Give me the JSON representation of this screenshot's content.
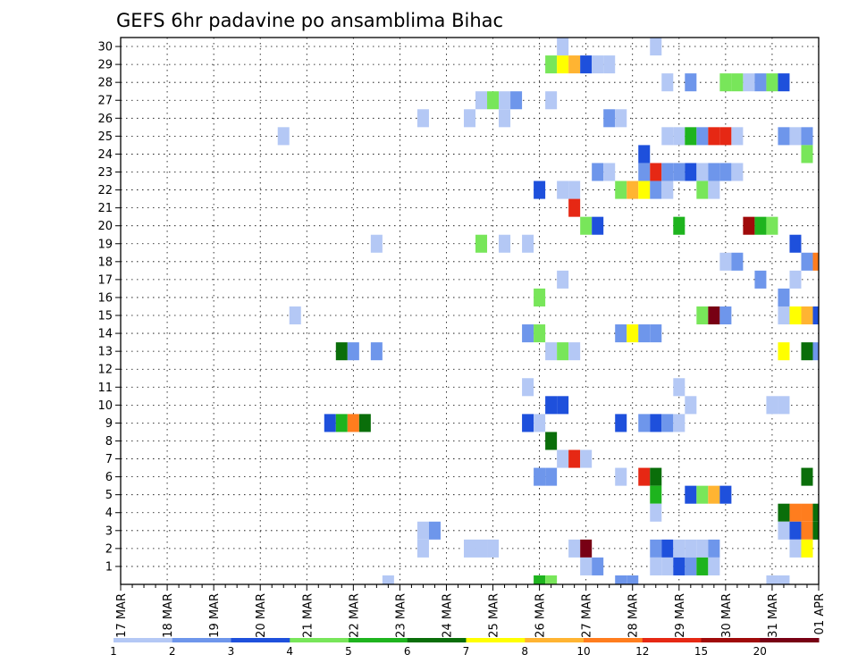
{
  "chart_data": {
    "type": "heatmap",
    "title": "GEFS 6hr padavine po ansamblima Bihac",
    "y_ticks": [
      1,
      2,
      3,
      4,
      5,
      6,
      7,
      8,
      9,
      10,
      11,
      12,
      13,
      14,
      15,
      16,
      17,
      18,
      19,
      20,
      21,
      22,
      23,
      24,
      25,
      26,
      27,
      28,
      29,
      30
    ],
    "ylim": [
      0,
      30
    ],
    "x_tick_labels": [
      "17 MAR",
      "18 MAR",
      "19 MAR",
      "20 MAR",
      "21 MAR",
      "22 MAR",
      "23 MAR",
      "24 MAR",
      "25 MAR",
      "26 MAR",
      "27 MAR",
      "28 MAR",
      "29 MAR",
      "30 MAR",
      "31 MAR",
      "01 APR"
    ],
    "x_steps": 60,
    "steps_per_day": 4,
    "grid": true,
    "legend_labels": [
      "1",
      "2",
      "3",
      "4",
      "5",
      "6",
      "7",
      "8",
      "10",
      "12",
      "15",
      "20"
    ],
    "legend_colors": [
      "#b4c8f5",
      "#6e96eb",
      "#1e50dc",
      "#78e65a",
      "#1eb41e",
      "#0a6e0a",
      "#ffff00",
      "#ffb432",
      "#ff7d1e",
      "#e62814",
      "#a00a0a",
      "#780014"
    ],
    "cells": [
      {
        "member": 29,
        "step": 37,
        "c": 3
      },
      {
        "member": 29,
        "step": 38,
        "c": 6
      },
      {
        "member": 29,
        "step": 39,
        "c": 7
      },
      {
        "member": 29,
        "step": 40,
        "c": 2
      },
      {
        "member": 29,
        "step": 41,
        "c": 0
      },
      {
        "member": 29,
        "step": 42,
        "c": 0
      },
      {
        "member": 30,
        "step": 38,
        "c": 0
      },
      {
        "member": 30,
        "step": 46,
        "c": 0
      },
      {
        "member": 28,
        "step": 47,
        "c": 0
      },
      {
        "member": 28,
        "step": 49,
        "c": 1
      },
      {
        "member": 28,
        "step": 52,
        "c": 3
      },
      {
        "member": 28,
        "step": 53,
        "c": 3
      },
      {
        "member": 28,
        "step": 54,
        "c": 0
      },
      {
        "member": 28,
        "step": 55,
        "c": 1
      },
      {
        "member": 28,
        "step": 56,
        "c": 3
      },
      {
        "member": 28,
        "step": 57,
        "c": 2
      },
      {
        "member": 27,
        "step": 31,
        "c": 0
      },
      {
        "member": 27,
        "step": 32,
        "c": 3
      },
      {
        "member": 27,
        "step": 33,
        "c": 0
      },
      {
        "member": 27,
        "step": 34,
        "c": 1
      },
      {
        "member": 27,
        "step": 37,
        "c": 0
      },
      {
        "member": 26,
        "step": 26,
        "c": 0
      },
      {
        "member": 26,
        "step": 30,
        "c": 0
      },
      {
        "member": 26,
        "step": 33,
        "c": 0
      },
      {
        "member": 26,
        "step": 42,
        "c": 1
      },
      {
        "member": 26,
        "step": 43,
        "c": 0
      },
      {
        "member": 25,
        "step": 14,
        "c": 0
      },
      {
        "member": 25,
        "step": 47,
        "c": 0
      },
      {
        "member": 25,
        "step": 48,
        "c": 0
      },
      {
        "member": 25,
        "step": 49,
        "c": 4
      },
      {
        "member": 25,
        "step": 50,
        "c": 1
      },
      {
        "member": 25,
        "step": 51,
        "c": 9
      },
      {
        "member": 25,
        "step": 52,
        "c": 9
      },
      {
        "member": 25,
        "step": 53,
        "c": 0
      },
      {
        "member": 25,
        "step": 57,
        "c": 1
      },
      {
        "member": 25,
        "step": 58,
        "c": 0
      },
      {
        "member": 25,
        "step": 59,
        "c": 1
      },
      {
        "member": 24,
        "step": 45,
        "c": 2
      },
      {
        "member": 24,
        "step": 59,
        "c": 3
      },
      {
        "member": 23,
        "step": 41,
        "c": 1
      },
      {
        "member": 23,
        "step": 42,
        "c": 0
      },
      {
        "member": 23,
        "step": 45,
        "c": 1
      },
      {
        "member": 23,
        "step": 46,
        "c": 9
      },
      {
        "member": 23,
        "step": 47,
        "c": 1
      },
      {
        "member": 23,
        "step": 48,
        "c": 1
      },
      {
        "member": 23,
        "step": 49,
        "c": 2
      },
      {
        "member": 23,
        "step": 50,
        "c": 0
      },
      {
        "member": 23,
        "step": 51,
        "c": 1
      },
      {
        "member": 23,
        "step": 52,
        "c": 1
      },
      {
        "member": 23,
        "step": 53,
        "c": 0
      },
      {
        "member": 22,
        "step": 36,
        "c": 2
      },
      {
        "member": 22,
        "step": 38,
        "c": 0
      },
      {
        "member": 22,
        "step": 39,
        "c": 0
      },
      {
        "member": 22,
        "step": 43,
        "c": 3
      },
      {
        "member": 22,
        "step": 44,
        "c": 7
      },
      {
        "member": 22,
        "step": 45,
        "c": 6
      },
      {
        "member": 22,
        "step": 46,
        "c": 1
      },
      {
        "member": 22,
        "step": 47,
        "c": 0
      },
      {
        "member": 22,
        "step": 50,
        "c": 3
      },
      {
        "member": 22,
        "step": 51,
        "c": 0
      },
      {
        "member": 21,
        "step": 39,
        "c": 9
      },
      {
        "member": 20,
        "step": 40,
        "c": 3
      },
      {
        "member": 20,
        "step": 41,
        "c": 2
      },
      {
        "member": 20,
        "step": 48,
        "c": 4
      },
      {
        "member": 20,
        "step": 54,
        "c": 10
      },
      {
        "member": 20,
        "step": 55,
        "c": 4
      },
      {
        "member": 20,
        "step": 56,
        "c": 3
      },
      {
        "member": 19,
        "step": 22,
        "c": 0
      },
      {
        "member": 19,
        "step": 31,
        "c": 3
      },
      {
        "member": 19,
        "step": 33,
        "c": 0
      },
      {
        "member": 19,
        "step": 35,
        "c": 0
      },
      {
        "member": 19,
        "step": 58,
        "c": 2
      },
      {
        "member": 18,
        "step": 52,
        "c": 0
      },
      {
        "member": 18,
        "step": 53,
        "c": 1
      },
      {
        "member": 18,
        "step": 59,
        "c": 1
      },
      {
        "member": 18,
        "step": 60,
        "c": 8
      },
      {
        "member": 17,
        "step": 38,
        "c": 0
      },
      {
        "member": 17,
        "step": 55,
        "c": 1
      },
      {
        "member": 17,
        "step": 58,
        "c": 0
      },
      {
        "member": 16,
        "step": 36,
        "c": 3
      },
      {
        "member": 16,
        "step": 57,
        "c": 1
      },
      {
        "member": 15,
        "step": 15,
        "c": 0
      },
      {
        "member": 15,
        "step": 50,
        "c": 3
      },
      {
        "member": 15,
        "step": 51,
        "c": 11
      },
      {
        "member": 15,
        "step": 52,
        "c": 1
      },
      {
        "member": 15,
        "step": 57,
        "c": 0
      },
      {
        "member": 15,
        "step": 58,
        "c": 6
      },
      {
        "member": 15,
        "step": 59,
        "c": 7
      },
      {
        "member": 15,
        "step": 60,
        "c": 2
      },
      {
        "member": 14,
        "step": 35,
        "c": 1
      },
      {
        "member": 14,
        "step": 36,
        "c": 3
      },
      {
        "member": 14,
        "step": 43,
        "c": 1
      },
      {
        "member": 14,
        "step": 44,
        "c": 6
      },
      {
        "member": 14,
        "step": 45,
        "c": 1
      },
      {
        "member": 14,
        "step": 46,
        "c": 1
      },
      {
        "member": 13,
        "step": 19,
        "c": 5
      },
      {
        "member": 13,
        "step": 20,
        "c": 1
      },
      {
        "member": 13,
        "step": 22,
        "c": 1
      },
      {
        "member": 13,
        "step": 37,
        "c": 0
      },
      {
        "member": 13,
        "step": 38,
        "c": 3
      },
      {
        "member": 13,
        "step": 39,
        "c": 0
      },
      {
        "member": 13,
        "step": 57,
        "c": 6
      },
      {
        "member": 13,
        "step": 59,
        "c": 5
      },
      {
        "member": 13,
        "step": 60,
        "c": 1
      },
      {
        "member": 11,
        "step": 35,
        "c": 0
      },
      {
        "member": 11,
        "step": 48,
        "c": 0
      },
      {
        "member": 10,
        "step": 37,
        "c": 2
      },
      {
        "member": 10,
        "step": 38,
        "c": 2
      },
      {
        "member": 10,
        "step": 49,
        "c": 0
      },
      {
        "member": 10,
        "step": 56,
        "c": 0
      },
      {
        "member": 10,
        "step": 57,
        "c": 0
      },
      {
        "member": 9,
        "step": 18,
        "c": 2
      },
      {
        "member": 9,
        "step": 19,
        "c": 4
      },
      {
        "member": 9,
        "step": 20,
        "c": 8
      },
      {
        "member": 9,
        "step": 21,
        "c": 5
      },
      {
        "member": 9,
        "step": 35,
        "c": 2
      },
      {
        "member": 9,
        "step": 36,
        "c": 0
      },
      {
        "member": 9,
        "step": 43,
        "c": 2
      },
      {
        "member": 9,
        "step": 45,
        "c": 1
      },
      {
        "member": 9,
        "step": 46,
        "c": 2
      },
      {
        "member": 9,
        "step": 47,
        "c": 1
      },
      {
        "member": 9,
        "step": 48,
        "c": 0
      },
      {
        "member": 8,
        "step": 37,
        "c": 5
      },
      {
        "member": 7,
        "step": 38,
        "c": 0
      },
      {
        "member": 7,
        "step": 39,
        "c": 9
      },
      {
        "member": 7,
        "step": 40,
        "c": 0
      },
      {
        "member": 6,
        "step": 36,
        "c": 1
      },
      {
        "member": 6,
        "step": 37,
        "c": 1
      },
      {
        "member": 6,
        "step": 43,
        "c": 0
      },
      {
        "member": 6,
        "step": 45,
        "c": 9
      },
      {
        "member": 6,
        "step": 46,
        "c": 5
      },
      {
        "member": 6,
        "step": 59,
        "c": 5
      },
      {
        "member": 5,
        "step": 46,
        "c": 4
      },
      {
        "member": 5,
        "step": 49,
        "c": 2
      },
      {
        "member": 5,
        "step": 50,
        "c": 3
      },
      {
        "member": 5,
        "step": 51,
        "c": 7
      },
      {
        "member": 5,
        "step": 52,
        "c": 2
      },
      {
        "member": 4,
        "step": 46,
        "c": 0
      },
      {
        "member": 4,
        "step": 57,
        "c": 5
      },
      {
        "member": 4,
        "step": 58,
        "c": 8
      },
      {
        "member": 4,
        "step": 59,
        "c": 8
      },
      {
        "member": 4,
        "step": 60,
        "c": 5
      },
      {
        "member": 3,
        "step": 26,
        "c": 0
      },
      {
        "member": 3,
        "step": 27,
        "c": 1
      },
      {
        "member": 3,
        "step": 57,
        "c": 0
      },
      {
        "member": 3,
        "step": 58,
        "c": 2
      },
      {
        "member": 3,
        "step": 59,
        "c": 8
      },
      {
        "member": 3,
        "step": 60,
        "c": 5
      },
      {
        "member": 2,
        "step": 26,
        "c": 0
      },
      {
        "member": 2,
        "step": 30,
        "c": 0
      },
      {
        "member": 2,
        "step": 31,
        "c": 0
      },
      {
        "member": 2,
        "step": 32,
        "c": 0
      },
      {
        "member": 2,
        "step": 39,
        "c": 0
      },
      {
        "member": 2,
        "step": 40,
        "c": 11
      },
      {
        "member": 2,
        "step": 46,
        "c": 1
      },
      {
        "member": 2,
        "step": 47,
        "c": 2
      },
      {
        "member": 2,
        "step": 48,
        "c": 0
      },
      {
        "member": 2,
        "step": 49,
        "c": 0
      },
      {
        "member": 2,
        "step": 50,
        "c": 0
      },
      {
        "member": 2,
        "step": 51,
        "c": 1
      },
      {
        "member": 2,
        "step": 58,
        "c": 0
      },
      {
        "member": 2,
        "step": 59,
        "c": 6
      },
      {
        "member": 1,
        "step": 40,
        "c": 0
      },
      {
        "member": 1,
        "step": 41,
        "c": 1
      },
      {
        "member": 1,
        "step": 46,
        "c": 0
      },
      {
        "member": 1,
        "step": 47,
        "c": 0
      },
      {
        "member": 1,
        "step": 48,
        "c": 2
      },
      {
        "member": 1,
        "step": 49,
        "c": 1
      },
      {
        "member": 1,
        "step": 50,
        "c": 4
      },
      {
        "member": 1,
        "step": 51,
        "c": 0
      },
      {
        "member": 0,
        "step": 23,
        "c": 0
      },
      {
        "member": 0,
        "step": 36,
        "c": 4
      },
      {
        "member": 0,
        "step": 37,
        "c": 3
      },
      {
        "member": 0,
        "step": 43,
        "c": 1
      },
      {
        "member": 0,
        "step": 44,
        "c": 1
      },
      {
        "member": 0,
        "step": 56,
        "c": 0
      },
      {
        "member": 0,
        "step": 57,
        "c": 0
      }
    ]
  }
}
